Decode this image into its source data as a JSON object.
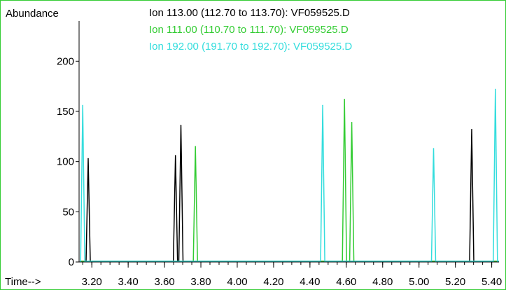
{
  "chart_data": {
    "type": "line",
    "ylabel": "Abundance",
    "xlabel": "Time-->",
    "xlim": [
      3.13,
      5.44
    ],
    "ylim": [
      0,
      240
    ],
    "x_ticks": [
      "3.20",
      "3.40",
      "3.60",
      "3.80",
      "4.00",
      "4.20",
      "4.40",
      "4.60",
      "4.80",
      "5.00",
      "5.20",
      "5.40"
    ],
    "x_tick_values": [
      3.2,
      3.4,
      3.6,
      3.8,
      4.0,
      4.2,
      4.4,
      4.6,
      4.8,
      5.0,
      5.2,
      5.4
    ],
    "x_minor_step": 0.05,
    "y_ticks": [
      "0",
      "50",
      "100",
      "150",
      "200"
    ],
    "y_tick_values": [
      0,
      50,
      100,
      150,
      200
    ],
    "series": [
      {
        "name": "Ion 113.00 (112.70 to 113.70): VF059525.D",
        "color": "#000000",
        "peaks": [
          {
            "x": 3.18,
            "y": 103
          },
          {
            "x": 3.66,
            "y": 106
          },
          {
            "x": 3.69,
            "y": 136
          },
          {
            "x": 5.29,
            "y": 132
          }
        ]
      },
      {
        "name": "Ion 111.00 (110.70 to 111.70): VF059525.D",
        "color": "#33cc33",
        "peaks": [
          {
            "x": 3.77,
            "y": 115
          },
          {
            "x": 4.59,
            "y": 162
          },
          {
            "x": 4.63,
            "y": 139
          }
        ]
      },
      {
        "name": "Ion 192.00 (191.70 to 192.70): VF059525.D",
        "color": "#33dddd",
        "peaks": [
          {
            "x": 3.15,
            "y": 156
          },
          {
            "x": 4.47,
            "y": 156
          },
          {
            "x": 5.08,
            "y": 113
          },
          {
            "x": 5.42,
            "y": 172
          }
        ]
      }
    ]
  }
}
